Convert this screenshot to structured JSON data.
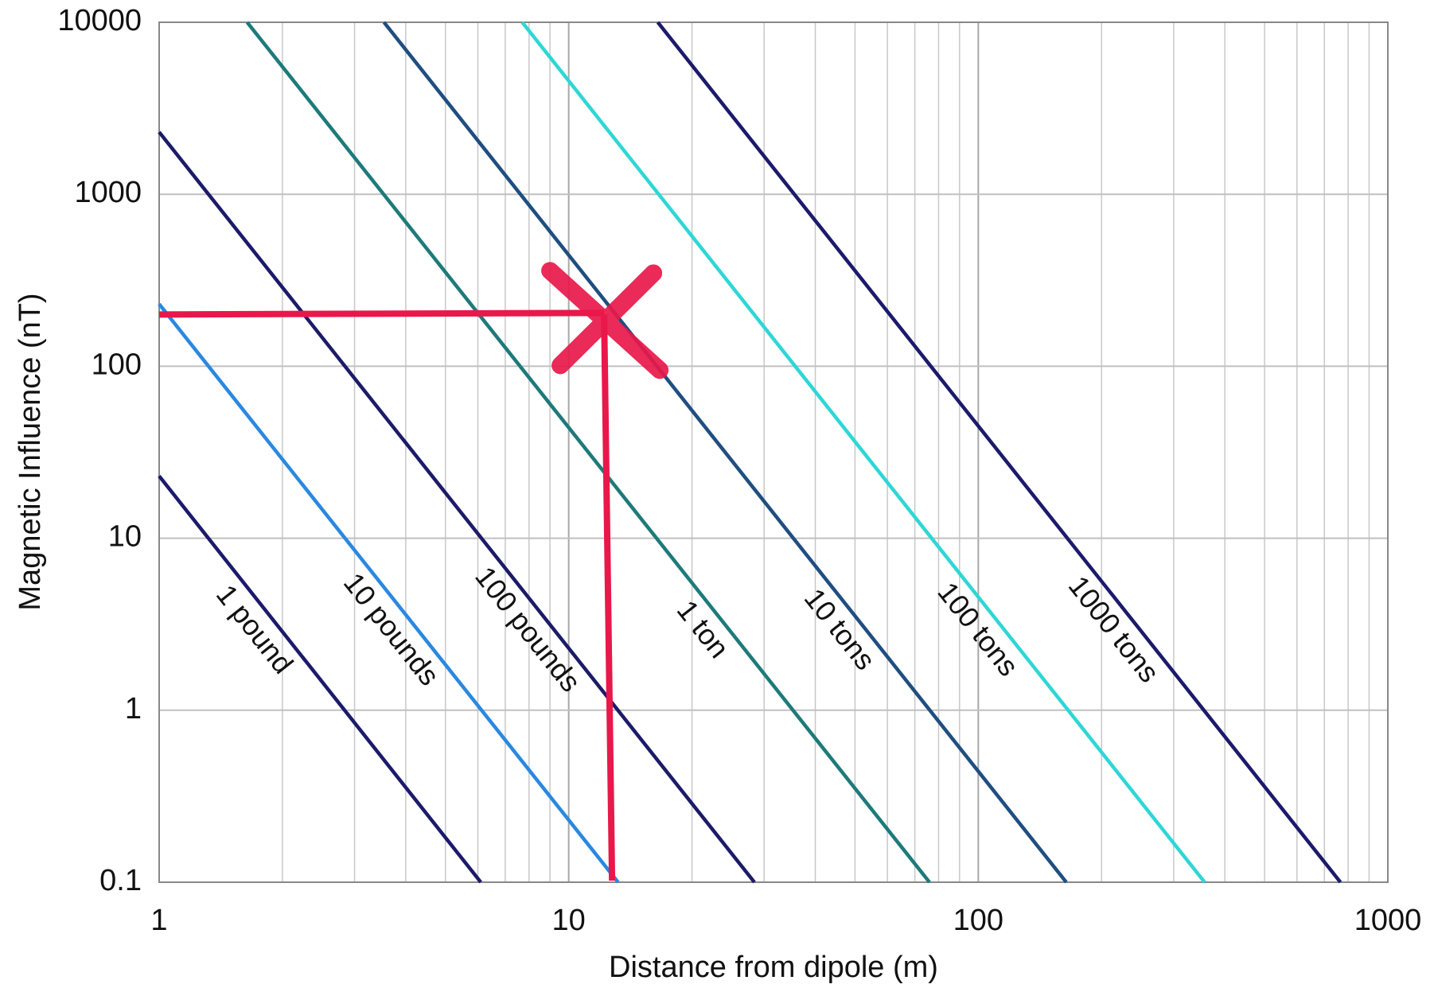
{
  "chart_data": {
    "type": "line",
    "xlabel": "Distance from dipole (m)",
    "ylabel": "Magnetic Influence (nT)",
    "xscale": "log",
    "yscale": "log",
    "grid": true,
    "xlim": [
      1,
      1000
    ],
    "ylim": [
      0.1,
      10000
    ],
    "xticks": [
      1,
      10,
      100,
      1000
    ],
    "xminorticks": [
      2,
      3,
      4,
      5,
      6,
      7,
      8,
      9,
      20,
      30,
      40,
      50,
      60,
      70,
      80,
      90,
      200,
      300,
      400,
      500,
      600,
      700,
      800,
      900
    ],
    "yticks": [
      0.1,
      1,
      10,
      100,
      1000,
      10000
    ],
    "series": [
      {
        "name": "1 pound",
        "color": "#1b1a6b",
        "x": [
          1,
          6.1
        ],
        "values": [
          23,
          0.1
        ]
      },
      {
        "name": "10 pounds",
        "color": "#2a88e0",
        "x": [
          1,
          13.2
        ],
        "values": [
          230,
          0.1
        ]
      },
      {
        "name": "100 pounds",
        "color": "#1c1b68",
        "x": [
          1,
          28.4
        ],
        "values": [
          2300,
          0.1
        ]
      },
      {
        "name": "1 ton",
        "color": "#1e7a7a",
        "x": [
          1.64,
          76
        ],
        "values": [
          10000,
          0.1
        ]
      },
      {
        "name": "10 tons",
        "color": "#1f4e80",
        "x": [
          3.54,
          164
        ],
        "values": [
          10000,
          0.1
        ]
      },
      {
        "name": "100 tons",
        "color": "#2fd6d6",
        "x": [
          7.7,
          357
        ],
        "values": [
          10000,
          0.1
        ]
      },
      {
        "name": "1000 tons",
        "color": "#1b1a6b",
        "x": [
          16.5,
          766
        ],
        "values": [
          10000,
          0.1
        ]
      }
    ],
    "annotation": {
      "x": 12.2,
      "y": 200,
      "color": "#e8184a"
    }
  }
}
